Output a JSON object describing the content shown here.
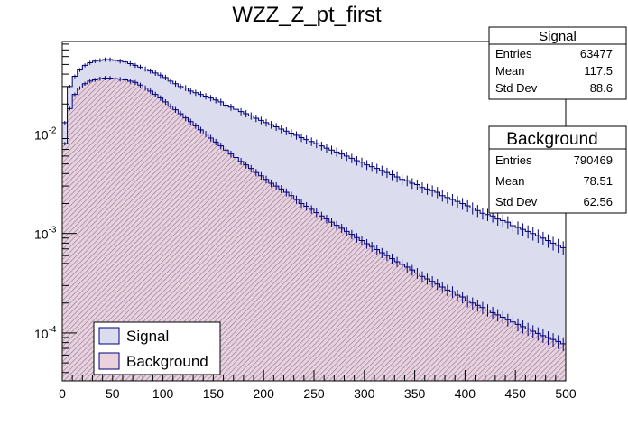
{
  "chart_data": {
    "type": "histogram",
    "title": "WZZ_Z_pt_first",
    "xlabel": "",
    "ylabel": "",
    "xlim": [
      0,
      500
    ],
    "ylim_log": [
      3.3e-05,
      0.085
    ],
    "yscale": "log",
    "x_ticks": [
      0,
      50,
      100,
      150,
      200,
      250,
      300,
      350,
      400,
      450,
      500
    ],
    "y_ticks": [
      {
        "value": 0.01,
        "base": "10",
        "exp": "-2"
      },
      {
        "value": 0.001,
        "base": "10",
        "exp": "-3"
      },
      {
        "value": 0.0001,
        "base": "10",
        "exp": "-4"
      }
    ],
    "series": [
      {
        "name": "Signal",
        "fill_color": "#dcdcef",
        "line_color": "#00007a",
        "bin_width": 5,
        "values": [
          0.013,
          0.03,
          0.038,
          0.044,
          0.049,
          0.052,
          0.054,
          0.055,
          0.056,
          0.056,
          0.055,
          0.054,
          0.053,
          0.051,
          0.049,
          0.047,
          0.045,
          0.043,
          0.041,
          0.039,
          0.037,
          0.034,
          0.032,
          0.03,
          0.029,
          0.027,
          0.026,
          0.025,
          0.024,
          0.023,
          0.022,
          0.021,
          0.0195,
          0.0186,
          0.0177,
          0.0168,
          0.016,
          0.0152,
          0.0144,
          0.0137,
          0.013,
          0.0124,
          0.0118,
          0.0112,
          0.0107,
          0.0102,
          0.0097,
          0.0092,
          0.0088,
          0.0084,
          0.008,
          0.0076,
          0.0072,
          0.0069,
          0.0066,
          0.0063,
          0.006,
          0.0057,
          0.0054,
          0.0052,
          0.0049,
          0.0047,
          0.0045,
          0.0043,
          0.0041,
          0.0039,
          0.0037,
          0.0035,
          0.0034,
          0.0032,
          0.0031,
          0.0029,
          0.0028,
          0.0027,
          0.0026,
          0.0024,
          0.0023,
          0.0022,
          0.0021,
          0.002,
          0.0019,
          0.0018,
          0.0017,
          0.0016,
          0.00155,
          0.0015,
          0.0014,
          0.00135,
          0.0013,
          0.0012,
          0.00115,
          0.0011,
          0.00105,
          0.001,
          0.00095,
          0.0009,
          0.00085,
          0.0008,
          0.00076,
          0.00072
        ]
      },
      {
        "name": "Background",
        "fill_color": "#ead2dc",
        "line_color": "#000080",
        "bin_width": 5,
        "values": [
          0.008,
          0.018,
          0.025,
          0.029,
          0.032,
          0.034,
          0.035,
          0.036,
          0.0365,
          0.0365,
          0.036,
          0.0355,
          0.035,
          0.034,
          0.033,
          0.031,
          0.029,
          0.027,
          0.025,
          0.023,
          0.021,
          0.019,
          0.0175,
          0.016,
          0.0145,
          0.0133,
          0.0121,
          0.011,
          0.01,
          0.0091,
          0.0083,
          0.0076,
          0.0069,
          0.0063,
          0.0058,
          0.0053,
          0.0049,
          0.0045,
          0.0041,
          0.0038,
          0.0035,
          0.0032,
          0.003,
          0.0028,
          0.0026,
          0.0024,
          0.0022,
          0.002,
          0.00188,
          0.00175,
          0.00162,
          0.0015,
          0.0014,
          0.0013,
          0.00121,
          0.00113,
          0.00105,
          0.00098,
          0.00091,
          0.00085,
          0.00079,
          0.00074,
          0.00069,
          0.00064,
          0.0006,
          0.00056,
          0.00052,
          0.00049,
          0.00046,
          0.00043,
          0.0004,
          0.00037,
          0.00035,
          0.00033,
          0.00031,
          0.00029,
          0.00027,
          0.00026,
          0.00024,
          0.00023,
          0.00021,
          0.0002,
          0.00019,
          0.00018,
          0.00017,
          0.00016,
          0.000152,
          0.000144,
          0.000136,
          0.000129,
          0.000122,
          0.000116,
          0.00011,
          0.000104,
          9.9e-05,
          9.4e-05,
          9e-05,
          8.6e-05,
          8.2e-05,
          7.8e-05
        ]
      }
    ],
    "legend": {
      "placement": "bottom-left",
      "entries": [
        "Signal",
        "Background"
      ]
    },
    "stats": [
      {
        "title": "Signal",
        "rows": [
          {
            "label": "Entries",
            "value": "63477"
          },
          {
            "label": "Mean",
            "value": "117.5"
          },
          {
            "label": "Std Dev",
            "value": "88.6"
          }
        ]
      },
      {
        "title": "Background",
        "rows": [
          {
            "label": "Entries",
            "value": "790469"
          },
          {
            "label": "Mean",
            "value": "78.51"
          },
          {
            "label": "Std Dev",
            "value": "62.56"
          }
        ]
      }
    ]
  }
}
